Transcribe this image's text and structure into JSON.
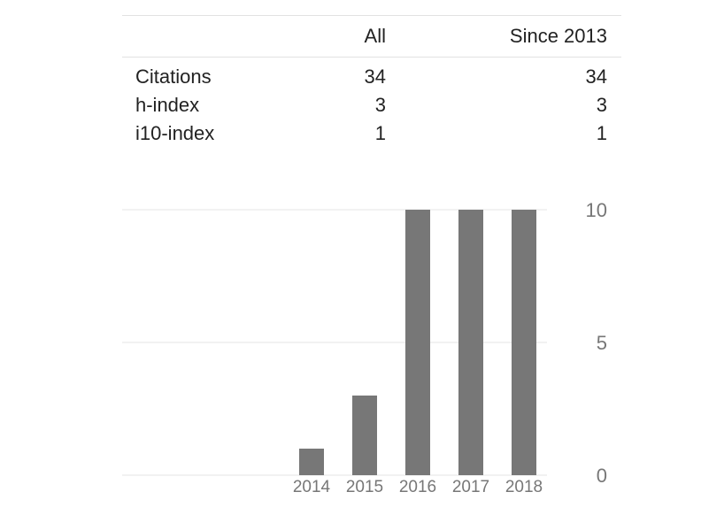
{
  "stats": {
    "columns": [
      "",
      "All",
      "Since 2013"
    ],
    "rows": [
      {
        "label": "Citations",
        "all": "34",
        "since": "34"
      },
      {
        "label": "h-index",
        "all": "3",
        "since": "3"
      },
      {
        "label": "i10-index",
        "all": "1",
        "since": "1"
      }
    ]
  },
  "colors": {
    "bar": "#777777",
    "grid": "#e6e6e6",
    "axis_text": "#777777",
    "text": "#222222"
  },
  "chart_data": {
    "type": "bar",
    "categories": [
      "2014",
      "2015",
      "2016",
      "2017",
      "2018"
    ],
    "values": [
      1,
      3,
      10,
      10,
      10
    ],
    "ylim": [
      0,
      10
    ],
    "yticks": [
      0,
      5,
      10
    ],
    "title": "",
    "xlabel": "",
    "ylabel": "",
    "grid": true,
    "y_axis_side": "right"
  }
}
